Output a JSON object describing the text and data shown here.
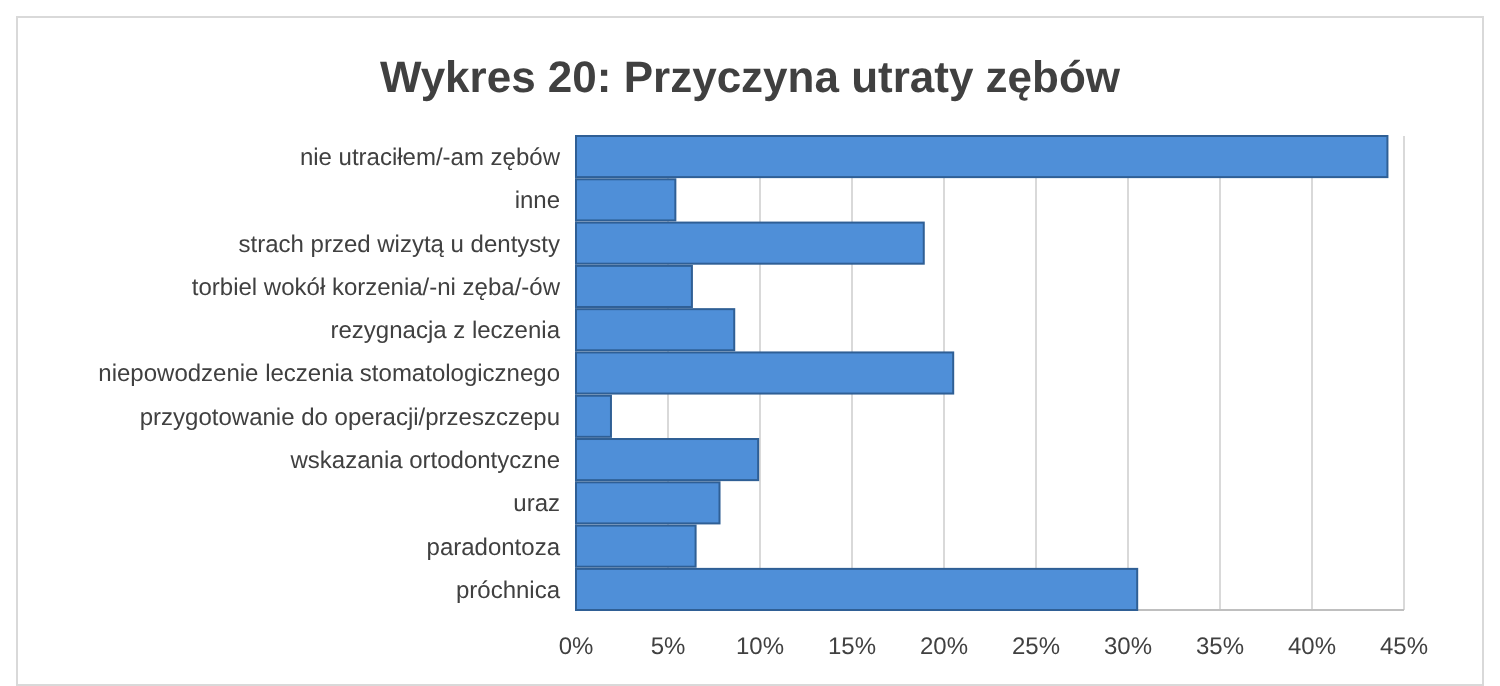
{
  "chart_data": {
    "type": "bar",
    "orientation": "horizontal",
    "title": "Wykres 20: Przyczyna utraty zębów",
    "categories": [
      "nie utraciłem/-am zębów",
      "inne",
      "strach przed wizytą u dentysty",
      "torbiel wokół korzenia/-ni zęba/-ów",
      "rezygnacja z leczenia",
      "niepowodzenie leczenia stomatologicznego",
      "przygotowanie do operacji/przeszczepu",
      "wskazania ortodontyczne",
      "uraz",
      "paradontoza",
      "próchnica"
    ],
    "values": [
      44.1,
      5.4,
      18.9,
      6.3,
      8.6,
      20.5,
      1.9,
      9.9,
      7.8,
      6.5,
      30.5
    ],
    "color": "#4f8fd8",
    "xlim": [
      0,
      45
    ],
    "xticks": [
      {
        "value": 0,
        "label": "0%"
      },
      {
        "value": 5,
        "label": "5%"
      },
      {
        "value": 10,
        "label": "10%"
      },
      {
        "value": 15,
        "label": "15%"
      },
      {
        "value": 20,
        "label": "20%"
      },
      {
        "value": 25,
        "label": "25%"
      },
      {
        "value": 30,
        "label": "30%"
      },
      {
        "value": 35,
        "label": "35%"
      },
      {
        "value": 40,
        "label": "40%"
      },
      {
        "value": 45,
        "label": "45%"
      }
    ],
    "grid": "x"
  }
}
